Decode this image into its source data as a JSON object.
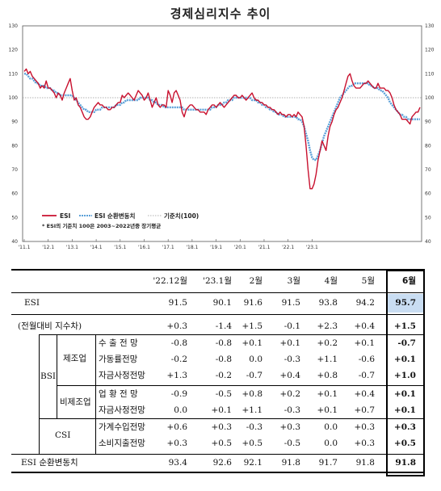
{
  "title": "경제심리지수 추이",
  "chart_data": {
    "type": "line",
    "title": "경제심리지수 추이",
    "ylim": [
      40,
      130
    ],
    "yticks": [
      "130",
      "120",
      "110",
      "100",
      "90",
      "80",
      "70",
      "60",
      "50",
      "40"
    ],
    "xticks": [
      "'11.1",
      "'12.1",
      "'13.1",
      "'14.1",
      "'15.1",
      "'16.1",
      "'17.1",
      "'18.1",
      "'19.1",
      "'20.1",
      "'21.1",
      "'22.1",
      "'23.1"
    ],
    "baseline": 100,
    "legend": {
      "esi": "ESI",
      "trend": "ESI 순환변동치",
      "baseline": "기준치(100)",
      "placement": "bottom-left"
    },
    "note": "* ESI의 기준치 100은 2003~2022년중 장기평균",
    "x_start": "'11.1",
    "series": [
      {
        "name": "ESI",
        "color": "#c8102e",
        "values": [
          111,
          112,
          110,
          111,
          109,
          108,
          107,
          106,
          104,
          105,
          104,
          107,
          104,
          104,
          103,
          102,
          100,
          102,
          101,
          99,
          102,
          104,
          106,
          108,
          103,
          99,
          100,
          97,
          96,
          94,
          92,
          91,
          91,
          92,
          94,
          96,
          97,
          98,
          97,
          97,
          96,
          96,
          95,
          95,
          96,
          96,
          97,
          98,
          98,
          101,
          100,
          101,
          102,
          101,
          100,
          99,
          101,
          103,
          102,
          101,
          99,
          100,
          102,
          99,
          96,
          98,
          100,
          97,
          96,
          97,
          97,
          96,
          103,
          101,
          98,
          102,
          103,
          101,
          99,
          94,
          92,
          95,
          96,
          97,
          97,
          96,
          95,
          95,
          94,
          94,
          94,
          93,
          95,
          96,
          97,
          97,
          96,
          97,
          98,
          97,
          96,
          97,
          98,
          99,
          100,
          101,
          101,
          100,
          100,
          101,
          100,
          99,
          100,
          101,
          102,
          100,
          99,
          99,
          98,
          98,
          97,
          97,
          96,
          96,
          95,
          95,
          94,
          93,
          94,
          93,
          93,
          92,
          93,
          93,
          92,
          93,
          92,
          94,
          93,
          92,
          88,
          80,
          70,
          62,
          62,
          64,
          68,
          74,
          78,
          82,
          80,
          78,
          84,
          88,
          90,
          93,
          95,
          96,
          98,
          100,
          103,
          106,
          109,
          110,
          107,
          105,
          104,
          104,
          104,
          105,
          106,
          106,
          107,
          106,
          105,
          104,
          104,
          106,
          104,
          104,
          104,
          103,
          103,
          102,
          100,
          97,
          95,
          94,
          93,
          91,
          91,
          91,
          90,
          89,
          92,
          93,
          94,
          94,
          96
        ]
      },
      {
        "name": "ESI 순환변동치",
        "color": "#5aa0d8",
        "values": [
          110,
          110,
          109,
          108,
          108,
          107,
          106,
          106,
          105,
          105,
          105,
          104,
          104,
          104,
          103,
          103,
          102,
          102,
          101,
          101,
          101,
          101,
          101,
          101,
          101,
          100,
          99,
          98,
          97,
          96,
          95,
          95,
          94,
          94,
          94,
          94,
          95,
          95,
          95,
          96,
          96,
          96,
          96,
          96,
          96,
          96,
          97,
          97,
          97,
          98,
          98,
          99,
          99,
          99,
          99,
          99,
          99,
          99,
          100,
          100,
          100,
          100,
          100,
          99,
          99,
          98,
          98,
          97,
          97,
          97,
          96,
          96,
          96,
          96,
          96,
          96,
          96,
          96,
          96,
          96,
          95,
          95,
          95,
          95,
          95,
          95,
          95,
          95,
          95,
          95,
          95,
          95,
          95,
          95,
          96,
          96,
          96,
          97,
          97,
          97,
          98,
          98,
          99,
          99,
          99,
          100,
          100,
          100,
          100,
          100,
          100,
          100,
          100,
          100,
          99,
          99,
          99,
          98,
          98,
          97,
          97,
          96,
          96,
          95,
          95,
          94,
          94,
          93,
          93,
          93,
          92,
          92,
          92,
          92,
          92,
          92,
          92,
          91,
          91,
          90,
          88,
          85,
          82,
          78,
          75,
          74,
          74,
          76,
          78,
          81,
          84,
          86,
          88,
          90,
          92,
          94,
          96,
          98,
          100,
          101,
          102,
          103,
          104,
          105,
          105,
          106,
          106,
          106,
          106,
          106,
          106,
          106,
          106,
          105,
          105,
          104,
          104,
          104,
          103,
          103,
          102,
          101,
          100,
          98,
          97,
          96,
          95,
          94,
          93,
          93,
          92,
          92,
          91,
          91,
          91,
          91,
          91,
          91,
          91
        ]
      }
    ]
  },
  "table": {
    "col_headers": [
      "'22.12월",
      "'23.1월",
      "2월",
      "3월",
      "4월",
      "5월",
      "6월"
    ],
    "rows": [
      {
        "group": "",
        "sub": "",
        "label": "ESI",
        "values": [
          "91.5",
          "90.1",
          "91.6",
          "91.5",
          "93.8",
          "94.2",
          "95.7"
        ]
      },
      {
        "group": "",
        "sub": "",
        "label": "(전월대비 지수차)",
        "values": [
          "+0.3",
          "-1.4",
          "+1.5",
          "-0.1",
          "+2.3",
          "+0.4",
          "+1.5"
        ]
      },
      {
        "group": "BSI",
        "sub": "제조업",
        "label": "수 출 전 망",
        "values": [
          "-0.8",
          "-0.8",
          "+0.1",
          "+0.1",
          "+0.2",
          "+0.1",
          "-0.7"
        ]
      },
      {
        "group": "",
        "sub": "",
        "label": "가동률전망",
        "values": [
          "-0.2",
          "-0.8",
          "0.0",
          "-0.3",
          "+1.1",
          "-0.6",
          "+0.1"
        ]
      },
      {
        "group": "",
        "sub": "",
        "label": "자금사정전망",
        "values": [
          "+1.3",
          "-0.2",
          "-0.7",
          "+0.4",
          "+0.8",
          "-0.7",
          "+1.0"
        ]
      },
      {
        "group": "",
        "sub": "비제조업",
        "label": "업 황 전 망",
        "values": [
          "-0.9",
          "-0.5",
          "+0.8",
          "+0.2",
          "+0.1",
          "+0.4",
          "+0.1"
        ]
      },
      {
        "group": "",
        "sub": "",
        "label": "자금사정전망",
        "values": [
          "0.0",
          "+0.1",
          "+1.1",
          "-0.3",
          "+0.1",
          "+0.7",
          "+0.1"
        ]
      },
      {
        "group": "CSI",
        "sub": "",
        "label": "가계수입전망",
        "values": [
          "+0.6",
          "+0.3",
          "-0.3",
          "+0.3",
          "0.0",
          "+0.3",
          "+0.3"
        ]
      },
      {
        "group": "",
        "sub": "",
        "label": "소비지출전망",
        "values": [
          "+0.3",
          "+0.5",
          "+0.5",
          "-0.5",
          "0.0",
          "+0.3",
          "+0.5"
        ]
      },
      {
        "group": "",
        "sub": "",
        "label": "ESI 순환변동치",
        "values": [
          "93.4",
          "92.6",
          "92.1",
          "91.8",
          "91.7",
          "91.8",
          "91.8"
        ]
      }
    ]
  }
}
